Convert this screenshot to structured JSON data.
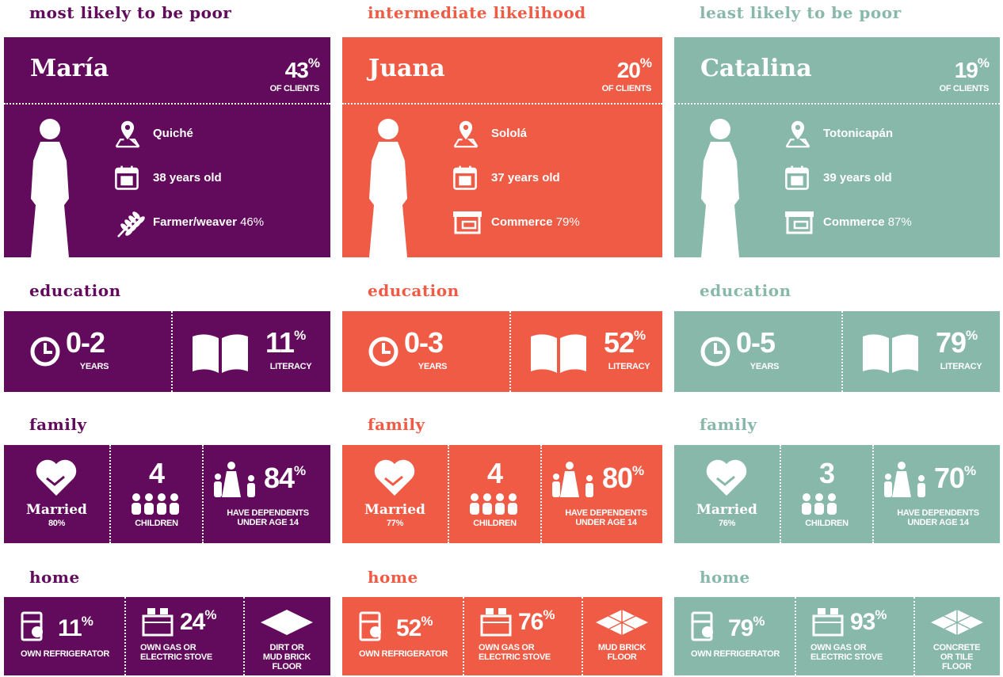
{
  "columns": [
    {
      "color": "#620a5b",
      "heading": "most likely to be poor",
      "name": "María",
      "share": {
        "value": "43",
        "sup": "%"
      },
      "share_label": "OF CLIENTS",
      "place": "Quiché",
      "age": "38 years old",
      "occupation": "Farmer/weaver",
      "occupation_share": "46%",
      "education": {
        "heading": "education",
        "years": "0-2",
        "years_label": "YEARS",
        "literacy": {
          "value": "11",
          "sup": "%"
        },
        "literacy_label": "LITERACY"
      },
      "family": {
        "heading": "family",
        "status": "Married",
        "status_share": "80%",
        "children": "4",
        "children_label": "CHILDREN",
        "dependents": {
          "value": "84",
          "sup": "%"
        },
        "dependents_label": "HAVE DEPENDENTS UNDER AGE 14"
      },
      "home": {
        "heading": "home",
        "refrigerator": {
          "value": "11",
          "sup": "%"
        },
        "refrigerator_label": "OWN REFRIGERATOR",
        "stove": {
          "value": "24",
          "sup": "%"
        },
        "stove_label": "OWN GAS OR ELECTRIC STOVE",
        "floor_label": "DIRT OR MUD BRICK FLOOR"
      }
    },
    {
      "color": "#ef5b45",
      "heading": "intermediate likelihood",
      "name": "Juana",
      "share": {
        "value": "20",
        "sup": "%"
      },
      "share_label": "OF CLIENTS",
      "place": "Sololá",
      "age": "37 years old",
      "occupation": "Commerce",
      "occupation_share": "79%",
      "education": {
        "heading": "education",
        "years": "0-3",
        "years_label": "YEARS",
        "literacy": {
          "value": "52",
          "sup": "%"
        },
        "literacy_label": "LITERACY"
      },
      "family": {
        "heading": "family",
        "status": "Married",
        "status_share": "77%",
        "children": "4",
        "children_label": "CHILDREN",
        "dependents": {
          "value": "80",
          "sup": "%"
        },
        "dependents_label": "HAVE DEPENDENTS UNDER AGE 14"
      },
      "home": {
        "heading": "home",
        "refrigerator": {
          "value": "52",
          "sup": "%"
        },
        "refrigerator_label": "OWN REFRIGERATOR",
        "stove": {
          "value": "76",
          "sup": "%"
        },
        "stove_label": "OWN GAS OR ELECTRIC STOVE",
        "floor_label": "MUD BRICK FLOOR"
      }
    },
    {
      "color": "#88b8aa",
      "heading": "least likely to be poor",
      "name": "Catalina",
      "share": {
        "value": "19",
        "sup": "%"
      },
      "share_label": "OF CLIENTS",
      "place": "Totonicapán",
      "age": "39 years old",
      "occupation": "Commerce",
      "occupation_share": "87%",
      "education": {
        "heading": "education",
        "years": "0-5",
        "years_label": "YEARS",
        "literacy": {
          "value": "79",
          "sup": "%"
        },
        "literacy_label": "LITERACY"
      },
      "family": {
        "heading": "family",
        "status": "Married",
        "status_share": "76%",
        "children": "3",
        "children_label": "CHILDREN",
        "dependents": {
          "value": "70",
          "sup": "%"
        },
        "dependents_label": "HAVE DEPENDENTS UNDER AGE 14"
      },
      "home": {
        "heading": "home",
        "refrigerator": {
          "value": "79",
          "sup": "%"
        },
        "refrigerator_label": "OWN REFRIGERATOR",
        "stove": {
          "value": "93",
          "sup": "%"
        },
        "stove_label": "OWN GAS OR ELECTRIC STOVE",
        "floor_label": "CONCRETE OR TILE FLOOR"
      }
    }
  ]
}
